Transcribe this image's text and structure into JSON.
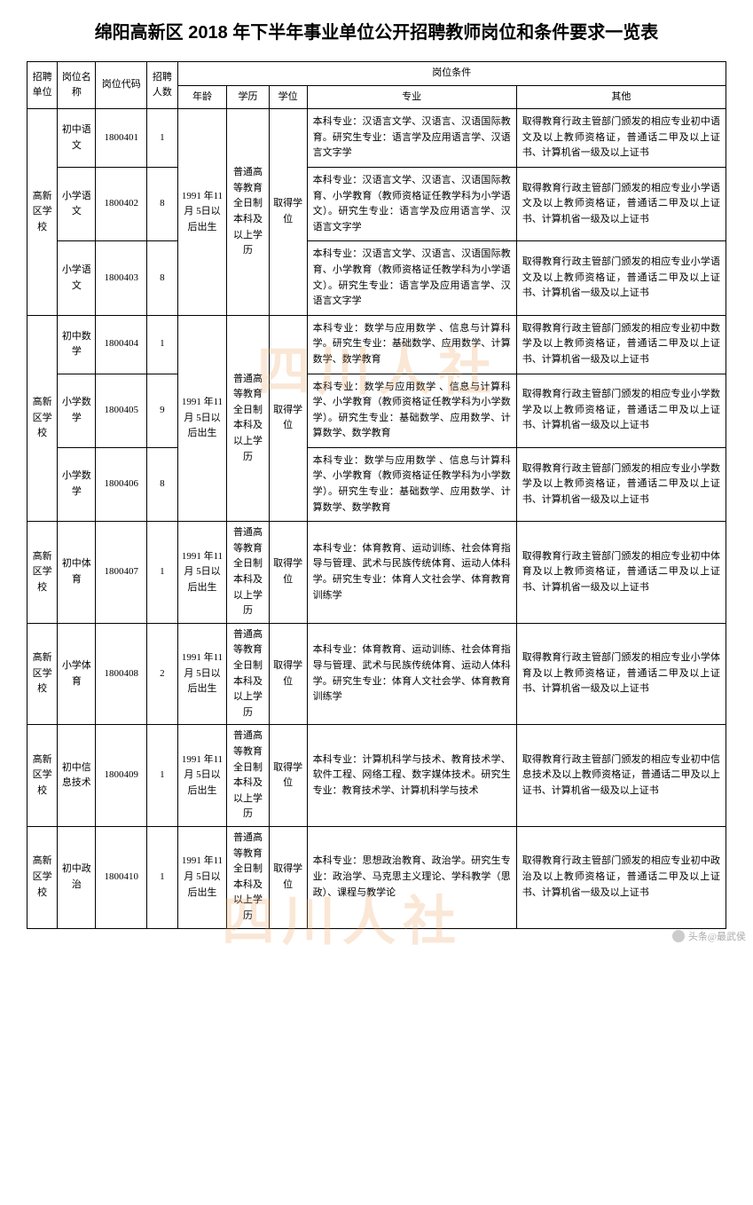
{
  "title": "绵阳高新区 2018 年下半年事业单位公开招聘教师岗位和条件要求一览表",
  "watermarks": [
    "四川人社",
    "四川人社"
  ],
  "headers": {
    "unit": "招聘单位",
    "name": "岗位名称",
    "code": "岗位代码",
    "count": "招聘人数",
    "cond_header": "岗位条件",
    "age": "年龄",
    "edu": "学历",
    "degree": "学位",
    "major": "专业",
    "other": "其他"
  },
  "shared": {
    "age": "1991 年11 月 5日以后出生",
    "edu": "普通高等教育全日制本科及以上学历",
    "degree": "取得学位"
  },
  "rows": [
    {
      "unit": "高新区学校",
      "name": "初中语文",
      "code": "1800401",
      "count": "1",
      "major": "本科专业：汉语言文学、汉语言、汉语国际教育。研究生专业：语言学及应用语言学、汉语言文字学",
      "other": "取得教育行政主管部门颁发的相应专业初中语文及以上教师资格证，普通话二甲及以上证书、计算机省一级及以上证书"
    },
    {
      "name": "小学语文",
      "code": "1800402",
      "count": "8",
      "major": "本科专业：汉语言文学、汉语言、汉语国际教育、小学教育（教师资格证任教学科为小学语文）。研究生专业：语言学及应用语言学、汉语言文字学",
      "other": "取得教育行政主管部门颁发的相应专业小学语文及以上教师资格证，普通话二甲及以上证书、计算机省一级及以上证书"
    },
    {
      "name": "小学语文",
      "code": "1800403",
      "count": "8",
      "major": "本科专业：汉语言文学、汉语言、汉语国际教育、小学教育（教师资格证任教学科为小学语文）。研究生专业：语言学及应用语言学、汉语言文字学",
      "other": "取得教育行政主管部门颁发的相应专业小学语文及以上教师资格证，普通话二甲及以上证书、计算机省一级及以上证书"
    },
    {
      "unit": "高新区学校",
      "name": "初中数学",
      "code": "1800404",
      "count": "1",
      "major": "本科专业：数学与应用数学 、信息与计算科学。研究生专业：基础数学、应用数学、计算数学、数学教育",
      "other": "取得教育行政主管部门颁发的相应专业初中数学及以上教师资格证，普通话二甲及以上证书、计算机省一级及以上证书"
    },
    {
      "name": "小学数学",
      "code": "1800405",
      "count": "9",
      "major": "本科专业：数学与应用数学 、信息与计算科学、小学教育（教师资格证任教学科为小学数学）。研究生专业：基础数学、应用数学、计算数学、数学教育",
      "other": "取得教育行政主管部门颁发的相应专业小学数学及以上教师资格证，普通话二甲及以上证书、计算机省一级及以上证书"
    },
    {
      "name": "小学数学",
      "code": "1800406",
      "count": "8",
      "major": "本科专业：数学与应用数学 、信息与计算科学、小学教育（教师资格证任教学科为小学数学）。研究生专业：基础数学、应用数学、计算数学、数学教育",
      "other": "取得教育行政主管部门颁发的相应专业小学数学及以上教师资格证，普通话二甲及以上证书、计算机省一级及以上证书"
    },
    {
      "unit": "高新区学校",
      "name": "初中体育",
      "code": "1800407",
      "count": "1",
      "major": "本科专业：体育教育、运动训练、社会体育指导与管理、武术与民族传统体育、运动人体科学。研究生专业：体育人文社会学、体育教育训练学",
      "other": "取得教育行政主管部门颁发的相应专业初中体育及以上教师资格证，普通话二甲及以上证书、计算机省一级及以上证书"
    },
    {
      "unit": "高新区学校",
      "name": "小学体育",
      "code": "1800408",
      "count": "2",
      "major": "本科专业：体育教育、运动训练、社会体育指导与管理、武术与民族传统体育、运动人体科学。研究生专业：体育人文社会学、体育教育训练学",
      "other": "取得教育行政主管部门颁发的相应专业小学体育及以上教师资格证，普通话二甲及以上证书、计算机省一级及以上证书"
    },
    {
      "unit": "高新区学校",
      "name": "初中信息技术",
      "code": "1800409",
      "count": "1",
      "major": "本科专业：计算机科学与技术、教育技术学、软件工程、网络工程、数字媒体技术。研究生专业：教育技术学、计算机科学与技术",
      "other": "取得教育行政主管部门颁发的相应专业初中信息技术及以上教师资格证，普通话二甲及以上证书、计算机省一级及以上证书"
    },
    {
      "unit": "高新区学校",
      "name": "初中政治",
      "code": "1800410",
      "count": "1",
      "major": "本科专业：思想政治教育、政治学。研究生专业：政治学、马克思主义理论、学科教学（思政）、课程与教学论",
      "other": "取得教育行政主管部门颁发的相应专业初中政治及以上教师资格证，普通话二甲及以上证书、计算机省一级及以上证书"
    }
  ],
  "footer": {
    "label": "头条@最武侯"
  }
}
